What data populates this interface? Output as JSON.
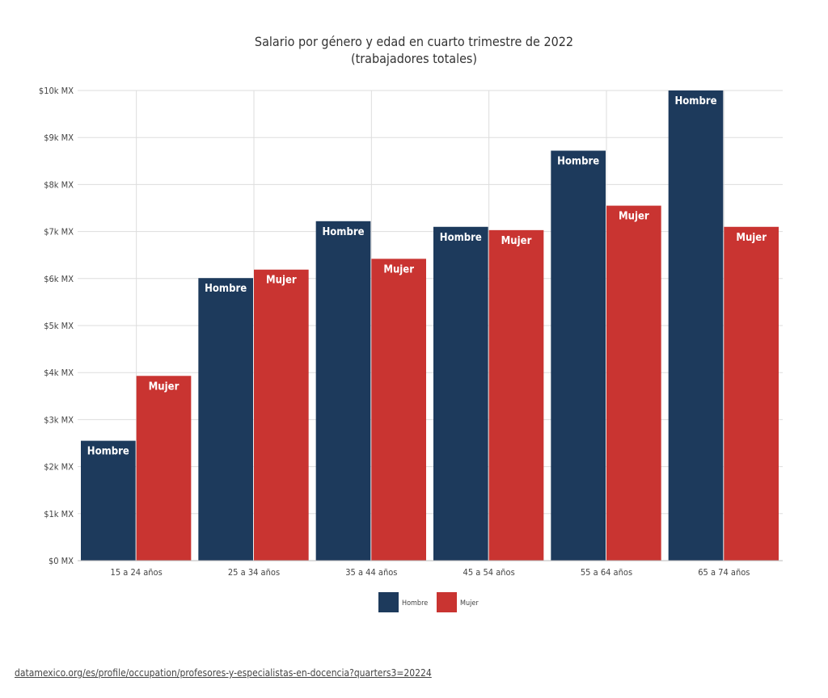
{
  "chart_data": {
    "type": "bar",
    "title": "Salario por género y edad en cuarto trimestre de 2022",
    "subtitle": "(trabajadores totales)",
    "categories": [
      "15 a 24 años",
      "25 a 34 años",
      "35 a 44 años",
      "45 a 54 años",
      "55 a 64 años",
      "65 a 74 años"
    ],
    "series": [
      {
        "name": "Hombre",
        "color": "#1d3a5c",
        "values": [
          2550,
          6010,
          7220,
          7100,
          8720,
          10000
        ]
      },
      {
        "name": "Mujer",
        "color": "#c93431",
        "values": [
          3930,
          6190,
          6420,
          7030,
          7550,
          7100
        ]
      }
    ],
    "ylim": [
      0,
      10000
    ],
    "yticks": [
      {
        "value": 0,
        "label": "$0 MX"
      },
      {
        "value": 1000,
        "label": "$1k MX"
      },
      {
        "value": 2000,
        "label": "$2k MX"
      },
      {
        "value": 3000,
        "label": "$3k MX"
      },
      {
        "value": 4000,
        "label": "$4k MX"
      },
      {
        "value": 5000,
        "label": "$5k MX"
      },
      {
        "value": 6000,
        "label": "$6k MX"
      },
      {
        "value": 7000,
        "label": "$7k MX"
      },
      {
        "value": 8000,
        "label": "$8k MX"
      },
      {
        "value": 9000,
        "label": "$9k MX"
      },
      {
        "value": 10000,
        "label": "$10k MX"
      }
    ],
    "grid": true,
    "legend_position": "bottom-center"
  },
  "source": "datamexico.org/es/profile/occupation/profesores-y-especialistas-en-docencia?quarters3=20224"
}
